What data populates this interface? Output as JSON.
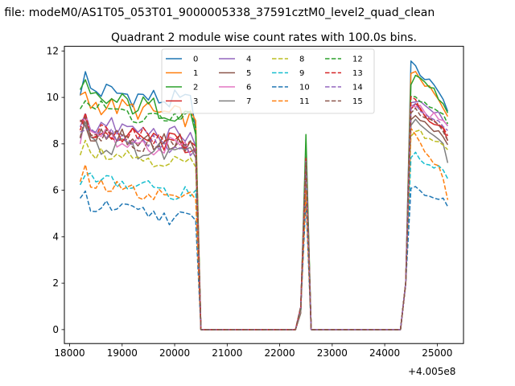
{
  "figure": {
    "suptitle": "n file: modeM0/AS1T05_053T01_9000005338_37591cztM0_level2_quad_clean",
    "x_offset_label": "+4.005e8"
  },
  "chart_data": {
    "type": "line",
    "title": "Quadrant 2 module wise count rates with 100.0s bins.",
    "xlabel": "",
    "ylabel": "",
    "xlim": [
      17900,
      25500
    ],
    "ylim": [
      -0.6,
      12.2
    ],
    "x_ticks": [
      18000,
      19000,
      20000,
      21000,
      22000,
      23000,
      24000,
      25000
    ],
    "x_tick_labels": [
      "18000",
      "19000",
      "20000",
      "21000",
      "22000",
      "23000",
      "24000",
      "25000"
    ],
    "y_ticks": [
      0,
      2,
      4,
      6,
      8,
      10,
      12
    ],
    "y_tick_labels": [
      "0",
      "2",
      "4",
      "6",
      "8",
      "10",
      "12"
    ],
    "grid": false,
    "legend_placement": "upper-center",
    "series": [
      {
        "name": "0",
        "color": "#1f77b4",
        "dashed": false,
        "level": 10.4,
        "noise": 0.5,
        "pre_end": 8.6,
        "spike": 7.8,
        "post": [
          11.6,
          11.3,
          11.0,
          10.8,
          10.7,
          10.6,
          10.2,
          9.9,
          9.4
        ]
      },
      {
        "name": "1",
        "color": "#ff7f0e",
        "dashed": false,
        "level": 9.8,
        "noise": 0.45,
        "pre_end": 9.0,
        "spike": 7.9,
        "post": [
          11.0,
          11.2,
          10.7,
          10.5,
          10.4,
          10.2,
          10.0,
          9.6,
          9.1
        ]
      },
      {
        "name": "2",
        "color": "#2ca02c",
        "dashed": false,
        "level": 10.0,
        "noise": 0.5,
        "pre_end": 8.4,
        "spike": 8.4,
        "post": [
          10.5,
          10.9,
          10.9,
          10.6,
          10.5,
          10.3,
          10.0,
          9.8,
          9.3
        ]
      },
      {
        "name": "3",
        "color": "#d62728",
        "dashed": false,
        "level": 8.6,
        "noise": 0.45,
        "pre_end": 7.8,
        "spike": 7.4,
        "post": [
          9.5,
          9.7,
          9.6,
          9.3,
          9.0,
          8.9,
          8.7,
          8.6,
          8.1
        ]
      },
      {
        "name": "4",
        "color": "#9467bd",
        "dashed": false,
        "level": 8.9,
        "noise": 0.45,
        "pre_end": 7.9,
        "spike": 7.5,
        "post": [
          9.7,
          9.9,
          9.8,
          9.6,
          9.5,
          9.4,
          9.3,
          9.1,
          8.8
        ]
      },
      {
        "name": "5",
        "color": "#8c564b",
        "dashed": false,
        "level": 8.6,
        "noise": 0.5,
        "pre_end": 7.6,
        "spike": 7.3,
        "post": [
          9.0,
          9.2,
          9.0,
          8.9,
          8.7,
          8.6,
          8.5,
          8.3,
          8.0
        ]
      },
      {
        "name": "6",
        "color": "#e377c2",
        "dashed": false,
        "level": 8.4,
        "noise": 0.45,
        "pre_end": 7.7,
        "spike": 7.2,
        "post": [
          9.6,
          9.5,
          9.6,
          9.3,
          9.2,
          9.4,
          9.1,
          9.0,
          8.7
        ]
      },
      {
        "name": "7",
        "color": "#7f7f7f",
        "dashed": false,
        "level": 8.1,
        "noise": 0.45,
        "pre_end": 7.4,
        "spike": 7.0,
        "post": [
          8.8,
          9.0,
          8.9,
          8.7,
          8.5,
          8.3,
          8.1,
          8.0,
          7.2
        ]
      },
      {
        "name": "8",
        "color": "#bcbd22",
        "dashed": true,
        "level": 7.8,
        "noise": 0.35,
        "pre_end": 7.0,
        "spike": 7.0,
        "post": [
          8.4,
          8.6,
          8.5,
          8.3,
          8.2,
          8.1,
          8.0,
          7.9,
          7.7
        ]
      },
      {
        "name": "9",
        "color": "#17becf",
        "dashed": true,
        "level": 6.5,
        "noise": 0.35,
        "pre_end": 6.0,
        "spike": 6.1,
        "post": [
          7.5,
          7.6,
          7.4,
          7.2,
          7.1,
          7.0,
          7.0,
          6.9,
          6.5
        ]
      },
      {
        "name": "10",
        "color": "#1f77b4",
        "dashed": true,
        "level": 5.4,
        "noise": 0.35,
        "pre_end": 4.7,
        "spike": 5.6,
        "post": [
          6.1,
          6.2,
          6.0,
          5.8,
          5.7,
          5.7,
          5.6,
          5.6,
          5.2
        ]
      },
      {
        "name": "11",
        "color": "#ff7f0e",
        "dashed": true,
        "level": 6.3,
        "noise": 0.35,
        "pre_end": 5.6,
        "spike": 6.0,
        "post": [
          8.6,
          8.3,
          8.0,
          7.7,
          7.5,
          7.2,
          7.0,
          6.6,
          5.6
        ]
      },
      {
        "name": "12",
        "color": "#2ca02c",
        "dashed": true,
        "level": 9.6,
        "noise": 0.45,
        "pre_end": 8.7,
        "spike": 7.7,
        "post": [
          10.0,
          10.1,
          9.9,
          9.7,
          9.6,
          9.5,
          9.3,
          9.2,
          8.9
        ]
      },
      {
        "name": "13",
        "color": "#d62728",
        "dashed": true,
        "level": 8.7,
        "noise": 0.4,
        "pre_end": 7.9,
        "spike": 7.4,
        "post": [
          10.1,
          9.9,
          9.5,
          9.3,
          9.1,
          9.0,
          8.9,
          8.7,
          8.4
        ]
      },
      {
        "name": "14",
        "color": "#9467bd",
        "dashed": true,
        "level": 8.5,
        "noise": 0.4,
        "pre_end": 7.8,
        "spike": 7.3,
        "post": [
          9.6,
          9.7,
          9.5,
          9.3,
          9.2,
          9.1,
          9.0,
          8.8,
          8.5
        ]
      },
      {
        "name": "15",
        "color": "#8c564b",
        "dashed": true,
        "level": 8.4,
        "noise": 0.4,
        "pre_end": 7.6,
        "spike": 7.2,
        "post": [
          9.3,
          9.5,
          9.3,
          9.1,
          9.0,
          8.9,
          8.8,
          8.6,
          8.2
        ]
      }
    ],
    "segments": {
      "pre_start": 18200,
      "pre_end": 20400,
      "bin": 100,
      "gap1_start": 20500,
      "gap1_end": 22300,
      "spike_x": 22500,
      "spike_rise": [
        22400,
        0.7
      ],
      "gap2_start": 22600,
      "gap2_end": 24300,
      "post_rise": [
        24400,
        2.0
      ],
      "post_start": 24500,
      "post_end": 25200
    }
  }
}
